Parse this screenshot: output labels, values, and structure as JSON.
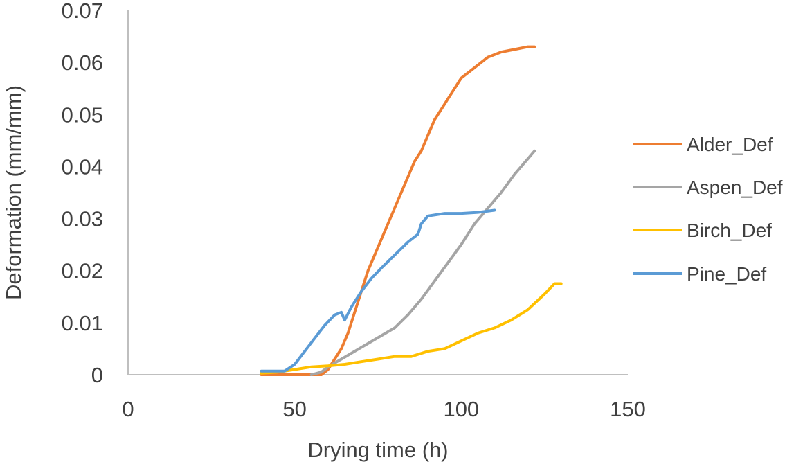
{
  "chart_data": {
    "type": "line",
    "title": "",
    "xlabel": "Drying time (h)",
    "ylabel": "Deformation (mm/mm)",
    "xlim": [
      0,
      150
    ],
    "ylim": [
      0,
      0.07
    ],
    "x_ticks": [
      "0",
      "50",
      "100",
      "150"
    ],
    "y_ticks": [
      "0",
      "0.01",
      "0.02",
      "0.03",
      "0.04",
      "0.05",
      "0.06",
      "0.07"
    ],
    "grid": false,
    "legend_position": "right",
    "series": [
      {
        "name": "Alder_Def",
        "color": "#ED7D31",
        "points": [
          [
            40,
            0
          ],
          [
            50,
            0
          ],
          [
            56,
            0
          ],
          [
            58,
            0
          ],
          [
            60,
            0.001
          ],
          [
            62,
            0.003
          ],
          [
            64,
            0.005
          ],
          [
            66,
            0.008
          ],
          [
            68,
            0.012
          ],
          [
            70,
            0.016
          ],
          [
            72,
            0.02
          ],
          [
            74,
            0.023
          ],
          [
            76,
            0.026
          ],
          [
            78,
            0.029
          ],
          [
            80,
            0.032
          ],
          [
            82,
            0.035
          ],
          [
            84,
            0.038
          ],
          [
            86,
            0.041
          ],
          [
            88,
            0.043
          ],
          [
            90,
            0.046
          ],
          [
            92,
            0.049
          ],
          [
            94,
            0.051
          ],
          [
            96,
            0.053
          ],
          [
            98,
            0.055
          ],
          [
            100,
            0.057
          ],
          [
            104,
            0.059
          ],
          [
            108,
            0.061
          ],
          [
            112,
            0.062
          ],
          [
            116,
            0.0625
          ],
          [
            120,
            0.063
          ],
          [
            122,
            0.063
          ]
        ]
      },
      {
        "name": "Aspen_Def",
        "color": "#A5A5A5",
        "points": [
          [
            55,
            0
          ],
          [
            58,
            0.0005
          ],
          [
            60,
            0.0015
          ],
          [
            64,
            0.003
          ],
          [
            68,
            0.0045
          ],
          [
            72,
            0.006
          ],
          [
            76,
            0.0075
          ],
          [
            80,
            0.009
          ],
          [
            84,
            0.0115
          ],
          [
            88,
            0.0145
          ],
          [
            92,
            0.018
          ],
          [
            96,
            0.0215
          ],
          [
            100,
            0.025
          ],
          [
            104,
            0.029
          ],
          [
            108,
            0.032
          ],
          [
            112,
            0.035
          ],
          [
            116,
            0.0385
          ],
          [
            120,
            0.0415
          ],
          [
            122,
            0.043
          ]
        ]
      },
      {
        "name": "Birch_Def",
        "color": "#FFC000",
        "points": [
          [
            40,
            0.0003
          ],
          [
            45,
            0.0005
          ],
          [
            50,
            0.001
          ],
          [
            55,
            0.0015
          ],
          [
            60,
            0.0017
          ],
          [
            65,
            0.002
          ],
          [
            70,
            0.0025
          ],
          [
            75,
            0.003
          ],
          [
            80,
            0.0035
          ],
          [
            85,
            0.0035
          ],
          [
            90,
            0.0045
          ],
          [
            95,
            0.005
          ],
          [
            100,
            0.0065
          ],
          [
            105,
            0.008
          ],
          [
            110,
            0.009
          ],
          [
            115,
            0.0105
          ],
          [
            120,
            0.0125
          ],
          [
            125,
            0.0155
          ],
          [
            128,
            0.0175
          ],
          [
            130,
            0.0175
          ]
        ]
      },
      {
        "name": "Pine_Def",
        "color": "#5B9BD5",
        "points": [
          [
            40,
            0.0007
          ],
          [
            44,
            0.0007
          ],
          [
            47,
            0.0007
          ],
          [
            50,
            0.002
          ],
          [
            53,
            0.0045
          ],
          [
            56,
            0.007
          ],
          [
            59,
            0.0095
          ],
          [
            62,
            0.0115
          ],
          [
            64,
            0.012
          ],
          [
            65,
            0.0105
          ],
          [
            67,
            0.013
          ],
          [
            70,
            0.016
          ],
          [
            73,
            0.0185
          ],
          [
            76,
            0.0205
          ],
          [
            80,
            0.023
          ],
          [
            84,
            0.0255
          ],
          [
            87,
            0.027
          ],
          [
            88,
            0.029
          ],
          [
            90,
            0.0305
          ],
          [
            95,
            0.031
          ],
          [
            100,
            0.031
          ],
          [
            105,
            0.0312
          ],
          [
            110,
            0.0316
          ]
        ]
      }
    ]
  }
}
